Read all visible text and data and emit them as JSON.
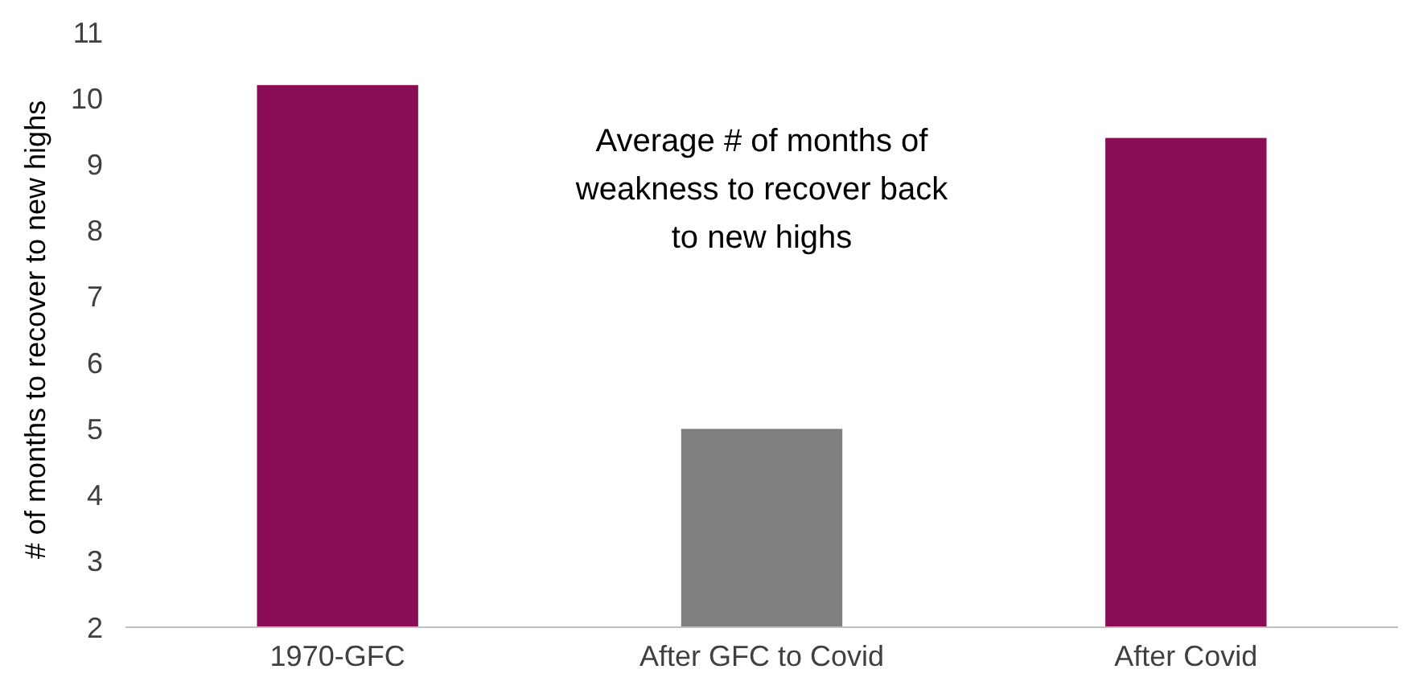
{
  "chart_data": {
    "type": "bar",
    "ylabel": "# of months to recover to new highs",
    "categories": [
      "1970-GFC",
      "After GFC to Covid",
      "After Covid"
    ],
    "values": [
      10.2,
      5.0,
      9.4
    ],
    "colors": [
      "#8a0c55",
      "#7f7f7f",
      "#8a0c55"
    ],
    "ylim": [
      2,
      11
    ],
    "yticks": [
      2,
      3,
      4,
      5,
      6,
      7,
      8,
      9,
      10,
      11
    ],
    "annotations": [
      "Average # of months of weakness to recover back to new highs"
    ],
    "grid": false
  }
}
